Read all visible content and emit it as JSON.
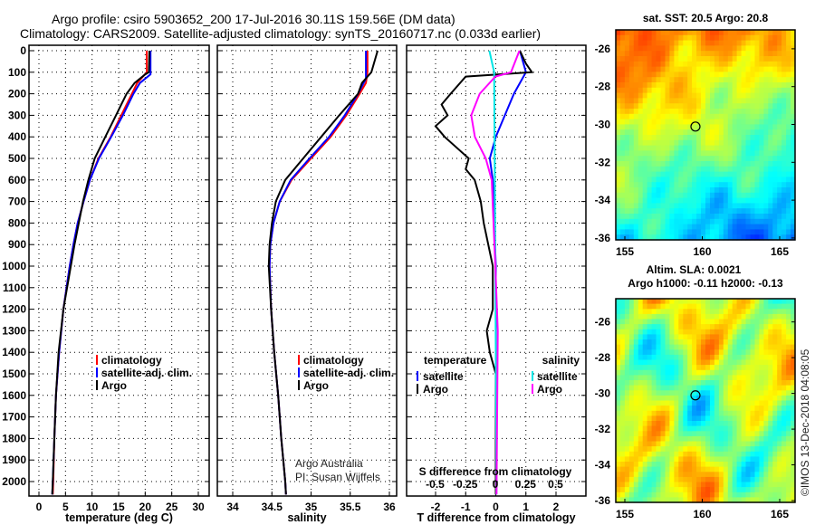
{
  "title_line1": "Argo profile: csiro 5903652_200 17-Jul-2016 30.11S 159.56E (DM data)",
  "title_line2": "Climatology: CARS2009. Satellite-adjusted climatology: synTS_20160717.nc (0.033d earlier)",
  "credit_line1": "Argo Australia",
  "credit_line2": "PI: Susan Wijffels",
  "copyright": "©IMOS 13-Dec-2018 04:08:05",
  "colors": {
    "climatology": "#ff0000",
    "satellite": "#0000ff",
    "argo": "#000000",
    "sal_satellite": "#00e5e5",
    "sal_argo": "#ff00ff"
  },
  "chart_data": [
    {
      "type": "line",
      "xlabel": "temperature (deg C)",
      "ylabel": "",
      "xlim": [
        -2,
        32
      ],
      "ylim": [
        2068,
        0
      ],
      "xticks": [
        "0",
        "5",
        "10",
        "15",
        "20",
        "25",
        "30"
      ],
      "yticks": [
        "0",
        "100",
        "200",
        "300",
        "400",
        "500",
        "600",
        "700",
        "800",
        "900",
        "1000",
        "1100",
        "1200",
        "1300",
        "1400",
        "1500",
        "1600",
        "1700",
        "1800",
        "1900",
        "2000"
      ],
      "legend": [
        "climatology",
        "satellite-adj. clim.",
        "Argo"
      ],
      "series": [
        {
          "name": "climatology",
          "depth": [
            0,
            100,
            150,
            200,
            300,
            400,
            500,
            600,
            700,
            800,
            900,
            1000,
            1200,
            1400,
            1600,
            1800,
            2000,
            2060
          ],
          "values": [
            20.3,
            20.3,
            18.5,
            17.5,
            15.5,
            13.5,
            11.2,
            9.6,
            8.4,
            7.3,
            6.5,
            5.8,
            4.6,
            3.8,
            3.2,
            2.9,
            2.7,
            2.6
          ]
        },
        {
          "name": "satellite-adj. clim.",
          "depth": [
            0,
            110,
            150,
            200,
            300,
            400,
            500,
            600,
            700,
            800,
            900,
            1000,
            1200,
            1400,
            1600,
            1800,
            2000,
            2060
          ],
          "values": [
            21.0,
            21.0,
            19.0,
            17.8,
            15.8,
            13.6,
            11.3,
            9.6,
            8.4,
            7.3,
            6.5,
            5.8,
            4.6,
            3.8,
            3.2,
            2.9,
            2.6,
            2.5
          ]
        },
        {
          "name": "Argo",
          "depth": [
            0,
            100,
            110,
            150,
            200,
            250,
            300,
            400,
            500,
            600,
            700,
            800,
            900,
            1000,
            1200,
            1400,
            1600,
            1800,
            2000,
            2060
          ],
          "values": [
            20.8,
            20.7,
            20.0,
            18.0,
            16.5,
            15.5,
            14.5,
            12.5,
            10.5,
            9.3,
            8.3,
            7.5,
            6.7,
            6.0,
            4.6,
            3.7,
            3.2,
            2.9,
            2.6,
            2.5
          ]
        }
      ]
    },
    {
      "type": "line",
      "xlabel": "salinity",
      "xlim": [
        33.8,
        36.1
      ],
      "ylim": [
        2068,
        0
      ],
      "xticks": [
        "34",
        "34.5",
        "35",
        "35.5",
        "36"
      ],
      "legend": [
        "climatology",
        "satellite-adj. clim.",
        "Argo"
      ],
      "series": [
        {
          "name": "climatology",
          "depth": [
            0,
            100,
            150,
            200,
            300,
            400,
            500,
            600,
            700,
            800,
            900,
            1000,
            1200,
            1400,
            1600,
            1800,
            2000,
            2060
          ],
          "values": [
            35.72,
            35.72,
            35.7,
            35.62,
            35.45,
            35.25,
            35.0,
            34.75,
            34.6,
            34.52,
            34.48,
            34.47,
            34.49,
            34.53,
            34.58,
            34.62,
            34.67,
            34.68
          ]
        },
        {
          "name": "satellite-adj. clim.",
          "depth": [
            0,
            130,
            200,
            300,
            400,
            500,
            600,
            700,
            800,
            900,
            1000,
            1200,
            1400,
            1600,
            1800,
            2000,
            2060
          ],
          "values": [
            35.7,
            35.7,
            35.6,
            35.43,
            35.23,
            34.98,
            34.74,
            34.6,
            34.52,
            34.48,
            34.47,
            34.49,
            34.53,
            34.58,
            34.62,
            34.67,
            34.68
          ]
        },
        {
          "name": "Argo",
          "depth": [
            0,
            100,
            150,
            200,
            300,
            400,
            500,
            600,
            700,
            800,
            900,
            1000,
            1200,
            1400,
            1600,
            1800,
            2000,
            2060
          ],
          "values": [
            35.85,
            35.77,
            35.65,
            35.6,
            35.36,
            35.13,
            34.9,
            34.67,
            34.55,
            34.5,
            34.47,
            34.46,
            34.49,
            34.53,
            34.58,
            34.62,
            34.67,
            34.68
          ]
        }
      ]
    },
    {
      "type": "line",
      "xlabel": "T difference from climatology",
      "x2label": "S difference from climatology",
      "xlim": [
        -3,
        3
      ],
      "x2lim": [
        -0.75,
        0.75
      ],
      "ylim": [
        2068,
        0
      ],
      "xticks": [
        "-2",
        "-1",
        "0",
        "1",
        "2"
      ],
      "x2ticks": [
        "-0.5",
        "-0.25",
        "0",
        "0.25",
        "0.5"
      ],
      "legend_temperature_title": "temperature",
      "legend_salinity_title": "salinity",
      "legend": [
        "satellite",
        "Argo"
      ],
      "series": [
        {
          "name": "T satellite",
          "axis": "T",
          "depth": [
            0,
            100,
            200,
            300,
            400,
            500,
            600,
            800,
            1000,
            2060
          ],
          "values": [
            0.8,
            1.0,
            0.6,
            0.3,
            0.0,
            -0.2,
            -0.1,
            -0.05,
            0,
            0
          ]
        },
        {
          "name": "T Argo",
          "axis": "T",
          "depth": [
            0,
            60,
            100,
            120,
            200,
            250,
            300,
            350,
            400,
            500,
            550,
            600,
            700,
            800,
            1000,
            1200,
            1300,
            1400,
            1500,
            2060
          ],
          "values": [
            0.8,
            1.0,
            1.2,
            -1.0,
            -1.5,
            -1.8,
            -1.6,
            -2.0,
            -1.7,
            -0.9,
            -1.0,
            -0.7,
            -0.5,
            -0.4,
            -0.1,
            -0.1,
            -0.3,
            -0.2,
            0,
            0
          ]
        },
        {
          "name": "S satellite",
          "axis": "S",
          "depth": [
            0,
            100,
            500,
            1000,
            2060
          ],
          "values": [
            -0.05,
            -0.01,
            -0.005,
            0,
            0.01
          ]
        },
        {
          "name": "S Argo",
          "axis": "S",
          "depth": [
            0,
            100,
            120,
            200,
            300,
            400,
            500,
            600,
            800,
            1000,
            1300,
            2060
          ],
          "values": [
            0.2,
            0.13,
            0,
            -0.13,
            -0.2,
            -0.17,
            -0.08,
            -0.03,
            -0.015,
            0,
            0.02,
            0.01
          ]
        }
      ]
    },
    {
      "type": "heatmap",
      "title": "sat. SST: 20.5 Argo: 20.8",
      "xticks": [
        "155",
        "160",
        "165"
      ],
      "yticks": [
        "-26",
        "-28",
        "-30",
        "-32",
        "-34",
        "-36"
      ],
      "profile_lon": 159.56,
      "profile_lat": -30.11
    },
    {
      "type": "heatmap",
      "title": "Altim. SLA: 0.0021",
      "subtitle": "Argo h1000: -0.11 h2000: -0.13",
      "xticks": [
        "155",
        "160",
        "165"
      ],
      "yticks": [
        "-26",
        "-28",
        "-30",
        "-32",
        "-34",
        "-36"
      ],
      "profile_lon": 159.56,
      "profile_lat": -30.11
    }
  ]
}
